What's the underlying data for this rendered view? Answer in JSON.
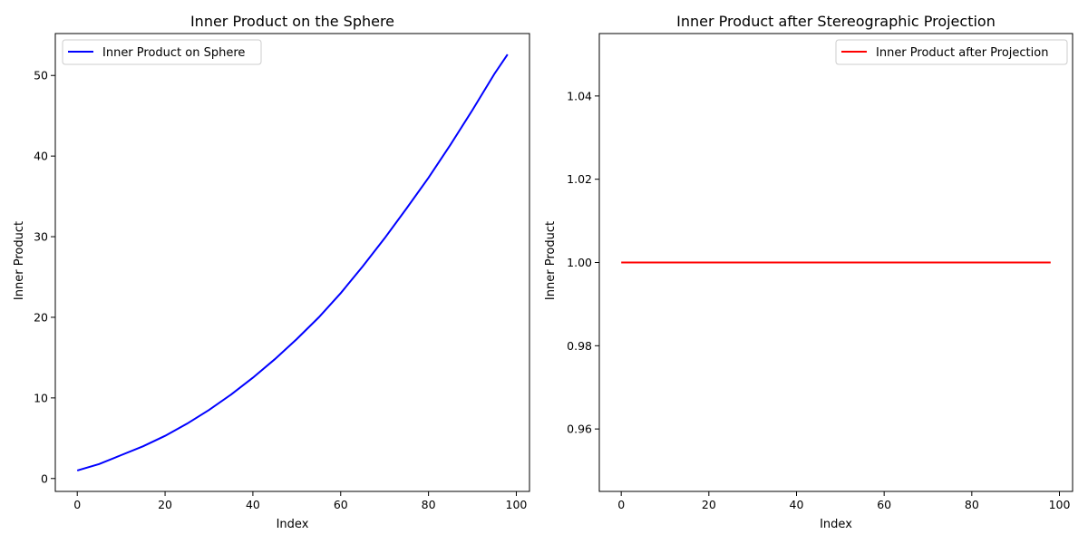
{
  "chart_data": [
    {
      "type": "line",
      "title": "Inner Product on the Sphere",
      "xlabel": "Index",
      "ylabel": "Inner Product",
      "xlim": [
        -5,
        103
      ],
      "ylim": [
        -1.6,
        55.2
      ],
      "xticks": [
        0,
        20,
        40,
        60,
        80,
        100
      ],
      "yticks": [
        0,
        10,
        20,
        30,
        40,
        50
      ],
      "ytick_labels": [
        "0",
        "10",
        "20",
        "30",
        "40",
        "50"
      ],
      "legend": "top-left",
      "series": [
        {
          "name": "Inner Product on Sphere",
          "color": "#0000ff",
          "x": [
            0,
            5,
            10,
            15,
            20,
            25,
            30,
            35,
            40,
            45,
            50,
            55,
            60,
            65,
            70,
            75,
            80,
            85,
            90,
            95,
            98
          ],
          "y": [
            1.0,
            1.8,
            2.9,
            4.0,
            5.3,
            6.8,
            8.5,
            10.4,
            12.5,
            14.8,
            17.3,
            20.0,
            23.0,
            26.3,
            29.8,
            33.5,
            37.3,
            41.4,
            45.7,
            50.2,
            52.6
          ]
        }
      ]
    },
    {
      "type": "line",
      "title": "Inner Product after Stereographic Projection",
      "xlabel": "Index",
      "ylabel": "Inner Product",
      "xlim": [
        -5,
        103
      ],
      "ylim": [
        0.945,
        1.055
      ],
      "xticks": [
        0,
        20,
        40,
        60,
        80,
        100
      ],
      "yticks": [
        0.96,
        0.98,
        1.0,
        1.02,
        1.04
      ],
      "ytick_labels": [
        "0.96",
        "0.98",
        "1.00",
        "1.02",
        "1.04"
      ],
      "legend": "top-right",
      "series": [
        {
          "name": "Inner Product after Projection",
          "color": "#ff0000",
          "x": [
            0,
            98
          ],
          "y": [
            1.0,
            1.0
          ]
        }
      ]
    }
  ]
}
